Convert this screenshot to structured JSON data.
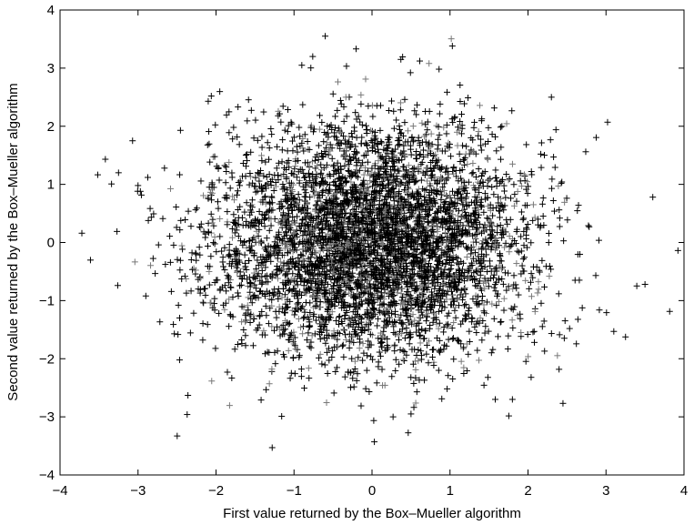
{
  "chart_data": {
    "type": "scatter",
    "title": "",
    "xlabel": "First value returned by the Box–Mueller algorithm",
    "ylabel": "Second value returned by the Box–Mueller algorithm",
    "xlim": [
      -4,
      4
    ],
    "ylim": [
      -4,
      4
    ],
    "xticks": [
      "−4",
      "−3",
      "−2",
      "−1",
      "0",
      "1",
      "2",
      "3",
      "4"
    ],
    "yticks": [
      "−4",
      "−3",
      "−2",
      "−1",
      "0",
      "1",
      "2",
      "3",
      "4"
    ],
    "grid": false,
    "marker": "plus",
    "marker_color": "#000000",
    "n_points": 5000,
    "distribution": "standard bivariate normal, mean 0, sd 1 (Box–Mueller samples)",
    "series": [
      {
        "values": [
          [
            -3.72,
            0.16
          ],
          [
            -3.27,
            0.19
          ],
          [
            -3.26,
            -0.74
          ],
          [
            -3.25,
            1.2
          ],
          [
            -3.07,
            1.75
          ],
          [
            -3.0,
            0.98
          ],
          [
            -2.97,
            0.88
          ],
          [
            -2.9,
            -0.92
          ],
          [
            -2.1,
            2.43
          ],
          [
            -1.28,
            -3.53
          ],
          [
            -0.6,
            3.55
          ],
          [
            -0.76,
            3.2
          ],
          [
            0.03,
            -3.43
          ],
          [
            1.03,
            3.38
          ],
          [
            2.3,
            2.5
          ],
          [
            3.02,
            2.07
          ],
          [
            3.6,
            0.78
          ],
          [
            3.5,
            -0.72
          ],
          [
            3.1,
            -1.53
          ],
          [
            1.58,
            -2.7
          ],
          [
            -2.37,
            -2.96
          ],
          [
            -2.36,
            -2.63
          ],
          [
            2.04,
            -2.32
          ],
          [
            1.8,
            -2.7
          ],
          [
            0.5,
            -2.95
          ],
          [
            0.27,
            -3.0
          ],
          [
            0.37,
            3.15
          ],
          [
            -0.9,
            3.05
          ]
        ]
      }
    ]
  }
}
